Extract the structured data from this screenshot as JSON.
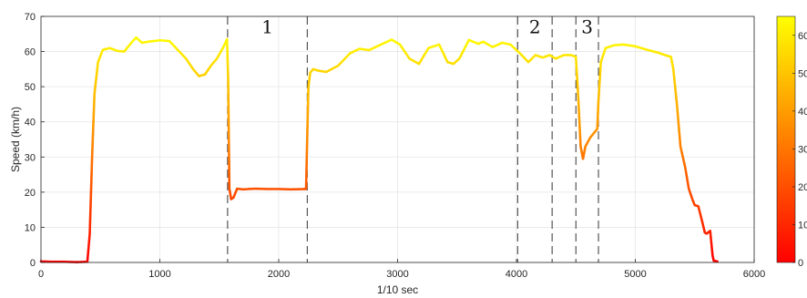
{
  "chart_data": {
    "type": "scatter",
    "xlabel": "1/10 sec",
    "ylabel": "Speed (km/h)",
    "xlim": [
      0,
      6000
    ],
    "ylim": [
      0,
      70
    ],
    "xticks": [
      0,
      1000,
      2000,
      3000,
      4000,
      5000,
      6000
    ],
    "yticks": [
      0,
      10,
      20,
      30,
      40,
      50,
      60,
      70
    ],
    "grid": true,
    "colormap": {
      "name": "autumn",
      "min_color": "#ff0000",
      "max_color": "#ffff00",
      "range": [
        0,
        65
      ],
      "ticks": [
        0,
        10,
        20,
        30,
        40,
        50,
        60
      ],
      "tick_labels": [
        "0",
        "10",
        "20",
        "30",
        "40",
        "50",
        "60"
      ]
    },
    "dashed_lines_x": [
      1570,
      2240,
      4010,
      4300,
      4500,
      4690
    ],
    "region_labels": [
      {
        "text": "1",
        "x": 1905,
        "y": 67
      },
      {
        "text": "2",
        "x": 4155,
        "y": 67
      },
      {
        "text": "3",
        "x": 4595,
        "y": 67
      }
    ],
    "series": [
      {
        "x": [
          0,
          100,
          200,
          300,
          390,
          410,
          430,
          450,
          480,
          520,
          580,
          640,
          700,
          760,
          800,
          850,
          900,
          1000,
          1080,
          1150,
          1220,
          1280,
          1330,
          1380,
          1430,
          1480,
          1530,
          1565,
          1575,
          1585,
          1600,
          1620,
          1650,
          1700,
          1800,
          1900,
          2000,
          2100,
          2230,
          2240,
          2250,
          2265,
          2290,
          2330,
          2400,
          2500,
          2600,
          2680,
          2760,
          2860,
          2950,
          3020,
          3100,
          3180,
          3260,
          3350,
          3420,
          3470,
          3520,
          3600,
          3680,
          3720,
          3800,
          3880,
          3950,
          4030,
          4100,
          4160,
          4220,
          4280,
          4330,
          4400,
          4460,
          4500,
          4520,
          4540,
          4560,
          4580,
          4620,
          4680,
          4690,
          4710,
          4750,
          4820,
          4900,
          5000,
          5100,
          5200,
          5250,
          5300,
          5320,
          5350,
          5380,
          5420,
          5450,
          5480,
          5500,
          5530,
          5560,
          5585,
          5600,
          5630,
          5650,
          5660,
          5690
        ],
        "y": [
          0.3,
          0.2,
          0.2,
          0.1,
          0.2,
          8,
          30,
          48,
          57,
          60.5,
          61,
          60.2,
          60,
          62.5,
          64,
          62.5,
          62.8,
          63.2,
          63,
          60.5,
          58,
          55,
          53,
          53.5,
          56,
          58,
          61,
          63.5,
          52,
          21,
          18,
          18.5,
          21,
          20.8,
          21,
          20.9,
          20.9,
          20.8,
          20.9,
          36,
          50,
          54,
          55,
          54.6,
          54.2,
          56,
          59.5,
          60.8,
          60.4,
          62,
          63.4,
          62,
          58,
          56.5,
          61,
          62,
          57,
          56.5,
          58,
          63.3,
          62.2,
          62.8,
          61.3,
          62.5,
          62,
          59.5,
          57,
          59,
          58.3,
          59,
          58,
          59,
          59,
          58.5,
          47,
          33,
          29.5,
          33,
          35.5,
          38,
          46,
          57,
          61,
          61.8,
          62,
          61.5,
          60.5,
          59.6,
          59,
          58.5,
          55,
          45,
          33,
          27,
          21,
          18,
          16.3,
          16,
          12,
          8.5,
          8.2,
          9,
          2,
          0.5,
          0.3
        ]
      }
    ]
  }
}
